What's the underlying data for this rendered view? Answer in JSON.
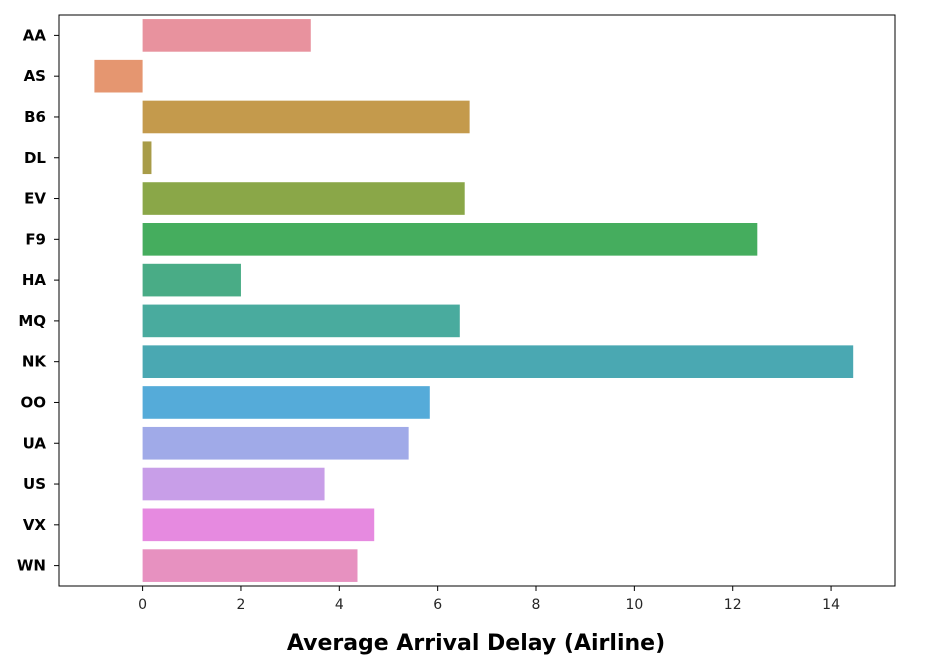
{
  "chart_data": {
    "type": "bar",
    "orientation": "horizontal",
    "title": "",
    "xlabel": "Average Arrival Delay (Airline)",
    "ylabel": "",
    "categories": [
      "AA",
      "AS",
      "B6",
      "DL",
      "EV",
      "F9",
      "HA",
      "MQ",
      "NK",
      "OO",
      "UA",
      "US",
      "VX",
      "WN"
    ],
    "values": [
      3.42,
      -0.98,
      6.65,
      0.18,
      6.55,
      12.5,
      2.0,
      6.45,
      14.45,
      5.84,
      5.41,
      3.7,
      4.71,
      4.37
    ],
    "colors": [
      "#e8929e",
      "#e59670",
      "#c49a4c",
      "#a89c48",
      "#8aa748",
      "#45ad5e",
      "#49ac86",
      "#49ab9e",
      "#4aa8b2",
      "#55abd9",
      "#a0aae8",
      "#c89ee8",
      "#e68ae0",
      "#e791c0"
    ],
    "xlim": [
      -1.7,
      15.3
    ],
    "xticks": [
      0,
      2,
      4,
      6,
      8,
      10,
      12,
      14
    ],
    "grid": false,
    "legend": "none"
  }
}
